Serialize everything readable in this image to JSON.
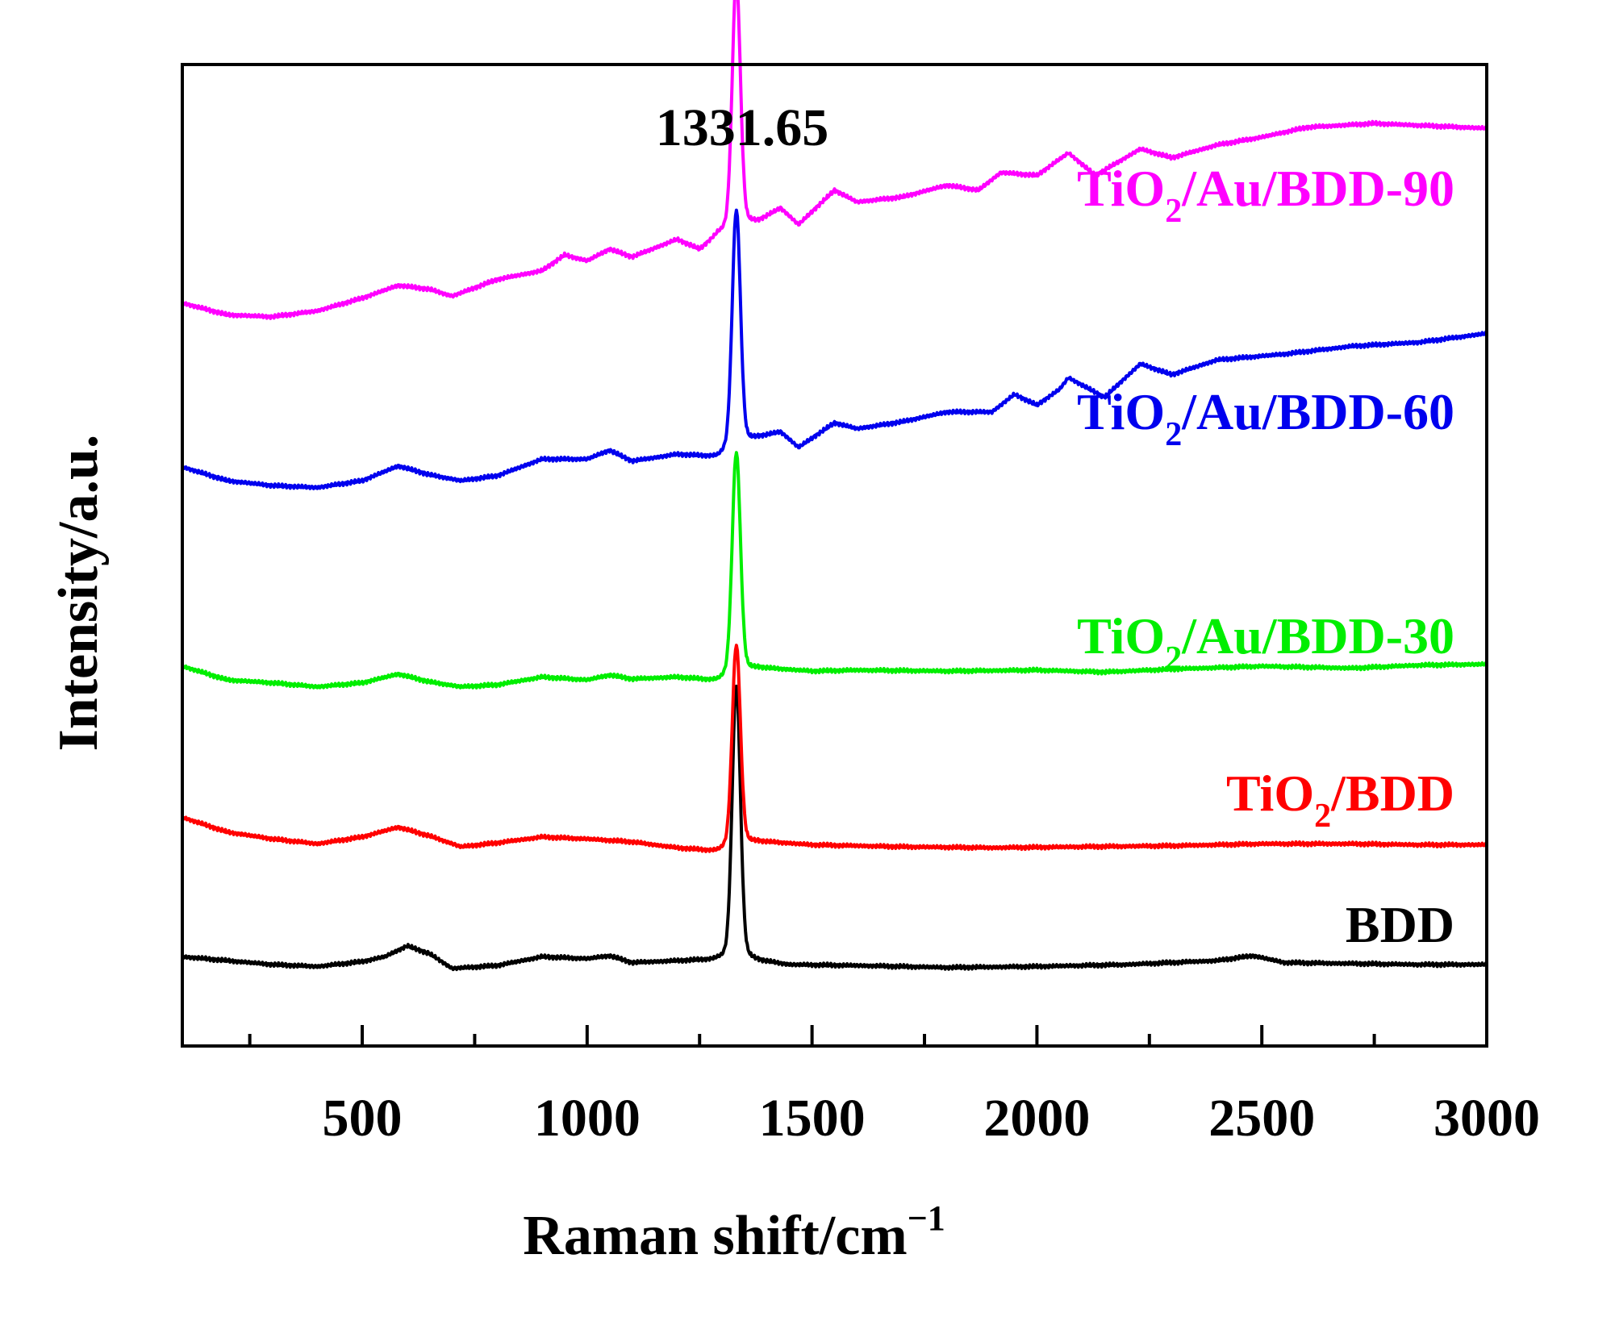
{
  "chart_data": {
    "type": "line",
    "title": "",
    "xlabel": "Raman  shift/cm",
    "xlabel_sup": "−1",
    "ylabel": "Intensity/a.u.",
    "xlim": [
      100,
      3000
    ],
    "ylim": [
      0,
      100
    ],
    "x_ticks": [
      500,
      1000,
      1500,
      2000,
      2500,
      3000
    ],
    "x_minor_ticks": [
      250,
      750,
      1250,
      1750,
      2250,
      2750
    ],
    "peak_annotation": {
      "label": "1331.65",
      "x": 1331.65
    },
    "series": [
      {
        "name": "BDD",
        "label_parts": [
          "BDD"
        ],
        "color": "#000000",
        "peak_height": 26.5,
        "points": [
          [
            100,
            9.1
          ],
          [
            200,
            8.7
          ],
          [
            300,
            8.3
          ],
          [
            400,
            8.1
          ],
          [
            500,
            8.6
          ],
          [
            550,
            9.1
          ],
          [
            600,
            10.2
          ],
          [
            650,
            9.4
          ],
          [
            700,
            7.9
          ],
          [
            800,
            8.2
          ],
          [
            900,
            9.1
          ],
          [
            1000,
            8.9
          ],
          [
            1050,
            9.2
          ],
          [
            1100,
            8.5
          ],
          [
            1200,
            8.7
          ],
          [
            1290,
            8.9
          ],
          [
            1380,
            8.8
          ],
          [
            1450,
            8.3
          ],
          [
            1600,
            8.2
          ],
          [
            1800,
            8.0
          ],
          [
            2000,
            8.1
          ],
          [
            2200,
            8.3
          ],
          [
            2400,
            8.7
          ],
          [
            2480,
            9.2
          ],
          [
            2550,
            8.5
          ],
          [
            2700,
            8.4
          ],
          [
            2850,
            8.3
          ],
          [
            3000,
            8.3
          ]
        ]
      },
      {
        "name": "TiO2/BDD",
        "label_parts": [
          "TiO",
          "2",
          "/BDD"
        ],
        "color": "#ff0000",
        "peak_height": 19.5,
        "points": [
          [
            100,
            23.3
          ],
          [
            200,
            21.8
          ],
          [
            300,
            21.1
          ],
          [
            400,
            20.6
          ],
          [
            500,
            21.3
          ],
          [
            580,
            22.3
          ],
          [
            650,
            21.4
          ],
          [
            720,
            20.3
          ],
          [
            800,
            20.7
          ],
          [
            900,
            21.3
          ],
          [
            1000,
            21.1
          ],
          [
            1100,
            20.8
          ],
          [
            1200,
            20.2
          ],
          [
            1290,
            19.9
          ],
          [
            1380,
            20.9
          ],
          [
            1500,
            20.5
          ],
          [
            1700,
            20.3
          ],
          [
            1900,
            20.2
          ],
          [
            2100,
            20.3
          ],
          [
            2300,
            20.4
          ],
          [
            2500,
            20.6
          ],
          [
            2700,
            20.6
          ],
          [
            2850,
            20.5
          ],
          [
            3000,
            20.5
          ]
        ]
      },
      {
        "name": "TiO2/Au/BDD-30",
        "label_parts": [
          "TiO",
          "2",
          "/Au/BDD-30"
        ],
        "color": "#00ee00",
        "peak_height": 21.5,
        "points": [
          [
            100,
            38.7
          ],
          [
            200,
            37.3
          ],
          [
            300,
            37.0
          ],
          [
            400,
            36.6
          ],
          [
            500,
            37.0
          ],
          [
            580,
            37.9
          ],
          [
            650,
            37.1
          ],
          [
            720,
            36.6
          ],
          [
            800,
            36.8
          ],
          [
            900,
            37.6
          ],
          [
            1000,
            37.3
          ],
          [
            1050,
            37.8
          ],
          [
            1100,
            37.4
          ],
          [
            1200,
            37.6
          ],
          [
            1290,
            37.3
          ],
          [
            1380,
            38.6
          ],
          [
            1500,
            38.2
          ],
          [
            1600,
            38.3
          ],
          [
            1800,
            38.2
          ],
          [
            2000,
            38.3
          ],
          [
            2150,
            38.1
          ],
          [
            2300,
            38.4
          ],
          [
            2500,
            38.7
          ],
          [
            2700,
            38.5
          ],
          [
            2850,
            38.8
          ],
          [
            3000,
            38.9
          ]
        ]
      },
      {
        "name": "TiO2/Au/BDD-60",
        "label_parts": [
          "TiO",
          "2",
          "/Au/BDD-60"
        ],
        "color": "#0000ee",
        "peak_height": 23,
        "points": [
          [
            100,
            59.0
          ],
          [
            200,
            57.6
          ],
          [
            300,
            57.1
          ],
          [
            400,
            56.9
          ],
          [
            500,
            57.6
          ],
          [
            580,
            59.1
          ],
          [
            650,
            58.2
          ],
          [
            720,
            57.6
          ],
          [
            800,
            58.1
          ],
          [
            900,
            59.8
          ],
          [
            1000,
            59.8
          ],
          [
            1050,
            60.7
          ],
          [
            1100,
            59.6
          ],
          [
            1200,
            60.3
          ],
          [
            1290,
            60.1
          ],
          [
            1380,
            62.1
          ],
          [
            1430,
            62.6
          ],
          [
            1470,
            61.0
          ],
          [
            1550,
            63.5
          ],
          [
            1600,
            62.9
          ],
          [
            1700,
            63.6
          ],
          [
            1800,
            64.6
          ],
          [
            1900,
            64.6
          ],
          [
            1950,
            66.4
          ],
          [
            2000,
            65.3
          ],
          [
            2050,
            66.9
          ],
          [
            2070,
            68.1
          ],
          [
            2150,
            66.1
          ],
          [
            2230,
            69.5
          ],
          [
            2300,
            68.4
          ],
          [
            2400,
            69.9
          ],
          [
            2550,
            70.5
          ],
          [
            2700,
            71.3
          ],
          [
            2850,
            71.7
          ],
          [
            3000,
            72.6
          ]
        ]
      },
      {
        "name": "TiO2/Au/BDD-90",
        "label_parts": [
          "TiO",
          "2",
          "/Au/BDD-90"
        ],
        "color": "#ff00ff",
        "peak_height": 24,
        "points": [
          [
            100,
            75.7
          ],
          [
            200,
            74.5
          ],
          [
            300,
            74.3
          ],
          [
            400,
            74.9
          ],
          [
            500,
            76.2
          ],
          [
            580,
            77.5
          ],
          [
            650,
            77.1
          ],
          [
            700,
            76.4
          ],
          [
            800,
            78.1
          ],
          [
            900,
            79.0
          ],
          [
            950,
            80.6
          ],
          [
            1000,
            80.0
          ],
          [
            1050,
            81.2
          ],
          [
            1100,
            80.4
          ],
          [
            1200,
            82.2
          ],
          [
            1250,
            81.2
          ],
          [
            1290,
            82.8
          ],
          [
            1380,
            84.1
          ],
          [
            1430,
            85.4
          ],
          [
            1470,
            83.7
          ],
          [
            1550,
            87.2
          ],
          [
            1600,
            86.0
          ],
          [
            1700,
            86.5
          ],
          [
            1800,
            87.7
          ],
          [
            1870,
            87.2
          ],
          [
            1920,
            89.0
          ],
          [
            2000,
            88.7
          ],
          [
            2070,
            91.0
          ],
          [
            2130,
            88.7
          ],
          [
            2230,
            91.4
          ],
          [
            2300,
            90.5
          ],
          [
            2400,
            91.8
          ],
          [
            2500,
            92.6
          ],
          [
            2600,
            93.6
          ],
          [
            2750,
            94.0
          ],
          [
            2850,
            93.8
          ],
          [
            3000,
            93.5
          ]
        ]
      }
    ]
  }
}
